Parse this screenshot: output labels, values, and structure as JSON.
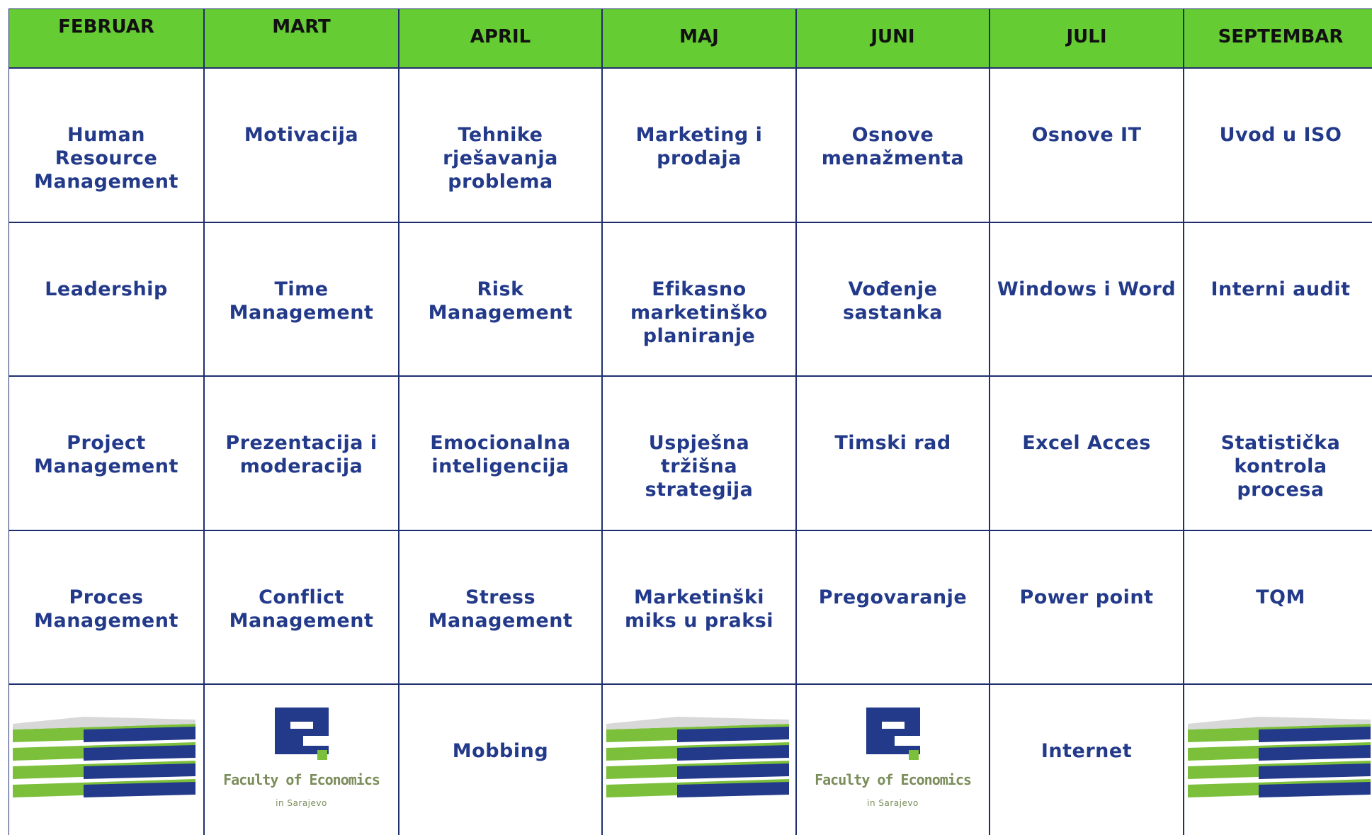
{
  "table": {
    "header": [
      "FEBRUAR",
      "MART",
      "APRIL",
      "MAJ",
      "JUNI",
      "JULI",
      "SEPTEMBAR"
    ],
    "rows": [
      [
        "Human Resource Management",
        "Motivacija",
        "Tehnike rješavanja problema",
        "Marketing i prodaja",
        "Osnove menažmenta",
        "Osnove IT",
        "Uvod u ISO"
      ],
      [
        "Leadership",
        "Time Management",
        "Risk Management",
        "Efikasno marketinško planiranje",
        "Vođenje sastanka",
        "Windows i Word",
        "Interni audit"
      ],
      [
        "Project Management",
        "Prezentacija i moderacija",
        "Emocionalna inteligencija",
        "Uspješna tržišna strategija",
        "Timski rad",
        "Excel Acces",
        "Statistička kontrola procesa"
      ],
      [
        "Proces Management",
        "Conflict Management",
        "Stress Management",
        "Marketinški miks u praksi",
        "Pregovaranje",
        "Power point",
        "TQM"
      ],
      [
        null,
        null,
        "Mobbing",
        null,
        null,
        "Internet",
        null
      ]
    ]
  },
  "logo": {
    "name": "Faculty of Economics",
    "city": "in Sarajevo"
  }
}
